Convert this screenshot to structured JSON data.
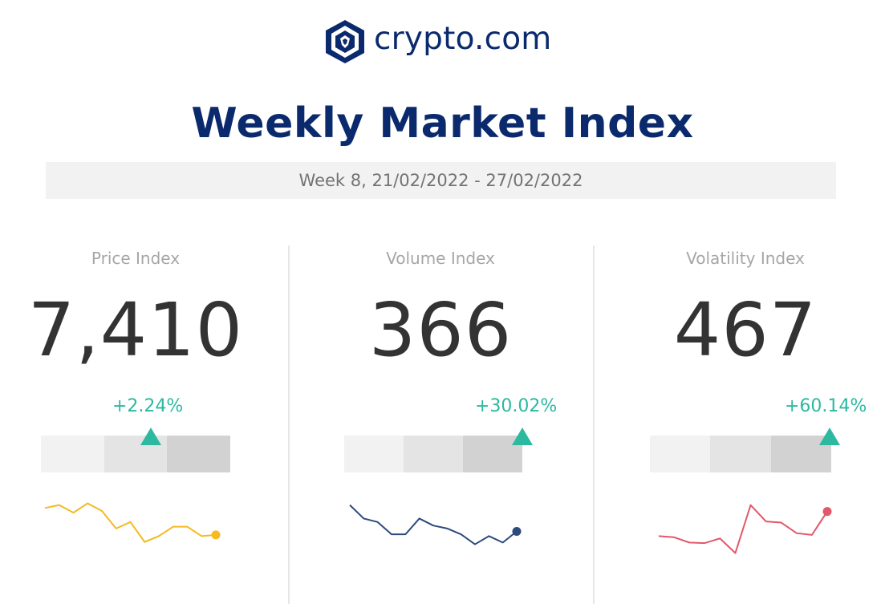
{
  "brand": {
    "name": "crypto.com",
    "color": "#0b2a6d"
  },
  "title": "Weekly Market Index",
  "week_range": "Week 8, 21/02/2022 - 27/02/2022",
  "accent_up": "#2cb9a0",
  "indices": [
    {
      "label": "Price Index",
      "value": "7,410",
      "change": "+2.24%",
      "gauge_level": 0.66,
      "spark_color": "#f5b921",
      "spark_values": [
        0.9,
        0.95,
        0.82,
        0.98,
        0.85,
        0.55,
        0.66,
        0.32,
        0.42,
        0.58,
        0.58,
        0.42,
        0.44
      ]
    },
    {
      "label": "Volume Index",
      "value": "366",
      "change": "+30.02%",
      "gauge_level": 1.0,
      "spark_color": "#2d4a7c",
      "spark_values": [
        0.95,
        0.72,
        0.66,
        0.45,
        0.45,
        0.72,
        0.6,
        0.55,
        0.45,
        0.28,
        0.42,
        0.31,
        0.5
      ]
    },
    {
      "label": "Volatility Index",
      "value": "467",
      "change": "+60.14%",
      "gauge_level": 1.0,
      "spark_color": "#e2576b",
      "spark_values": [
        0.42,
        0.4,
        0.31,
        0.3,
        0.38,
        0.13,
        0.95,
        0.67,
        0.65,
        0.47,
        0.44,
        0.84
      ]
    }
  ]
}
